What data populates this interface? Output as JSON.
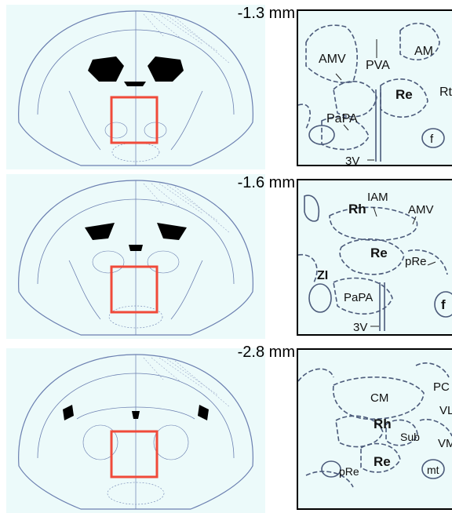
{
  "panels": [
    {
      "coordinate": "-1.3",
      "unit": "mm",
      "labels": [
        "AMV",
        "PVA",
        "AM",
        "Re",
        "Rt",
        "PaPA",
        "f",
        "3V"
      ]
    },
    {
      "coordinate": "-1.6",
      "unit": "mm",
      "labels": [
        "IAM",
        "Rh",
        "AMV",
        "Re",
        "pRe",
        "ZI",
        "PaPA",
        "f",
        "3V"
      ]
    },
    {
      "coordinate": "-2.8",
      "unit": "mm",
      "labels": [
        "CM",
        "PC",
        "VL",
        "Rh",
        "Sub",
        "VM",
        "Re",
        "pRe",
        "mt"
      ]
    }
  ],
  "colors": {
    "background": "#ecfafa",
    "outline": "#6b7fb0",
    "dashed": "#4b5a7a",
    "highlight_box": "#f04a3a",
    "ventricle": "#000000"
  }
}
